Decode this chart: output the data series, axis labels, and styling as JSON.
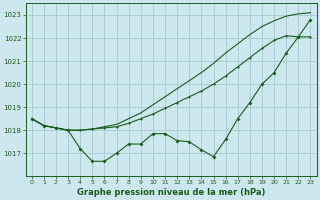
{
  "title": "Graphe pression niveau de la mer (hPa)",
  "background_color": "#cce8ee",
  "grid_color": "#aacdd6",
  "line_color": "#1a5c1a",
  "x_labels": [
    "0",
    "1",
    "2",
    "3",
    "4",
    "5",
    "6",
    "7",
    "8",
    "9",
    "10",
    "11",
    "12",
    "13",
    "14",
    "15",
    "16",
    "17",
    "18",
    "19",
    "20",
    "21",
    "22",
    "23"
  ],
  "ylim": [
    1016.0,
    1023.5
  ],
  "yticks": [
    1017,
    1018,
    1019,
    1020,
    1021,
    1022,
    1023
  ],
  "series_main": [
    1018.5,
    1018.2,
    1018.1,
    1018.0,
    1017.2,
    1016.65,
    1016.65,
    1017.0,
    1017.4,
    1017.4,
    1017.85,
    1017.85,
    1017.55,
    1017.5,
    1017.15,
    1016.85,
    1017.6,
    1018.5,
    1019.2,
    1020.0,
    1020.5,
    1021.35,
    1022.05,
    1022.8
  ],
  "series_high": [
    1018.5,
    1018.2,
    1018.1,
    1018.0,
    1018.0,
    1018.05,
    1018.1,
    1018.15,
    1018.3,
    1018.5,
    1018.7,
    1018.95,
    1019.2,
    1019.45,
    1019.7,
    1020.0,
    1020.35,
    1020.75,
    1021.15,
    1021.55,
    1021.9,
    1022.1,
    1022.05,
    1022.05
  ],
  "series_top": [
    1018.5,
    1018.2,
    1018.1,
    1018.0,
    1018.0,
    1018.05,
    1018.15,
    1018.25,
    1018.5,
    1018.75,
    1019.1,
    1019.45,
    1019.8,
    1020.15,
    1020.5,
    1020.9,
    1021.35,
    1021.75,
    1022.15,
    1022.5,
    1022.75,
    1022.95,
    1023.05,
    1023.1
  ]
}
